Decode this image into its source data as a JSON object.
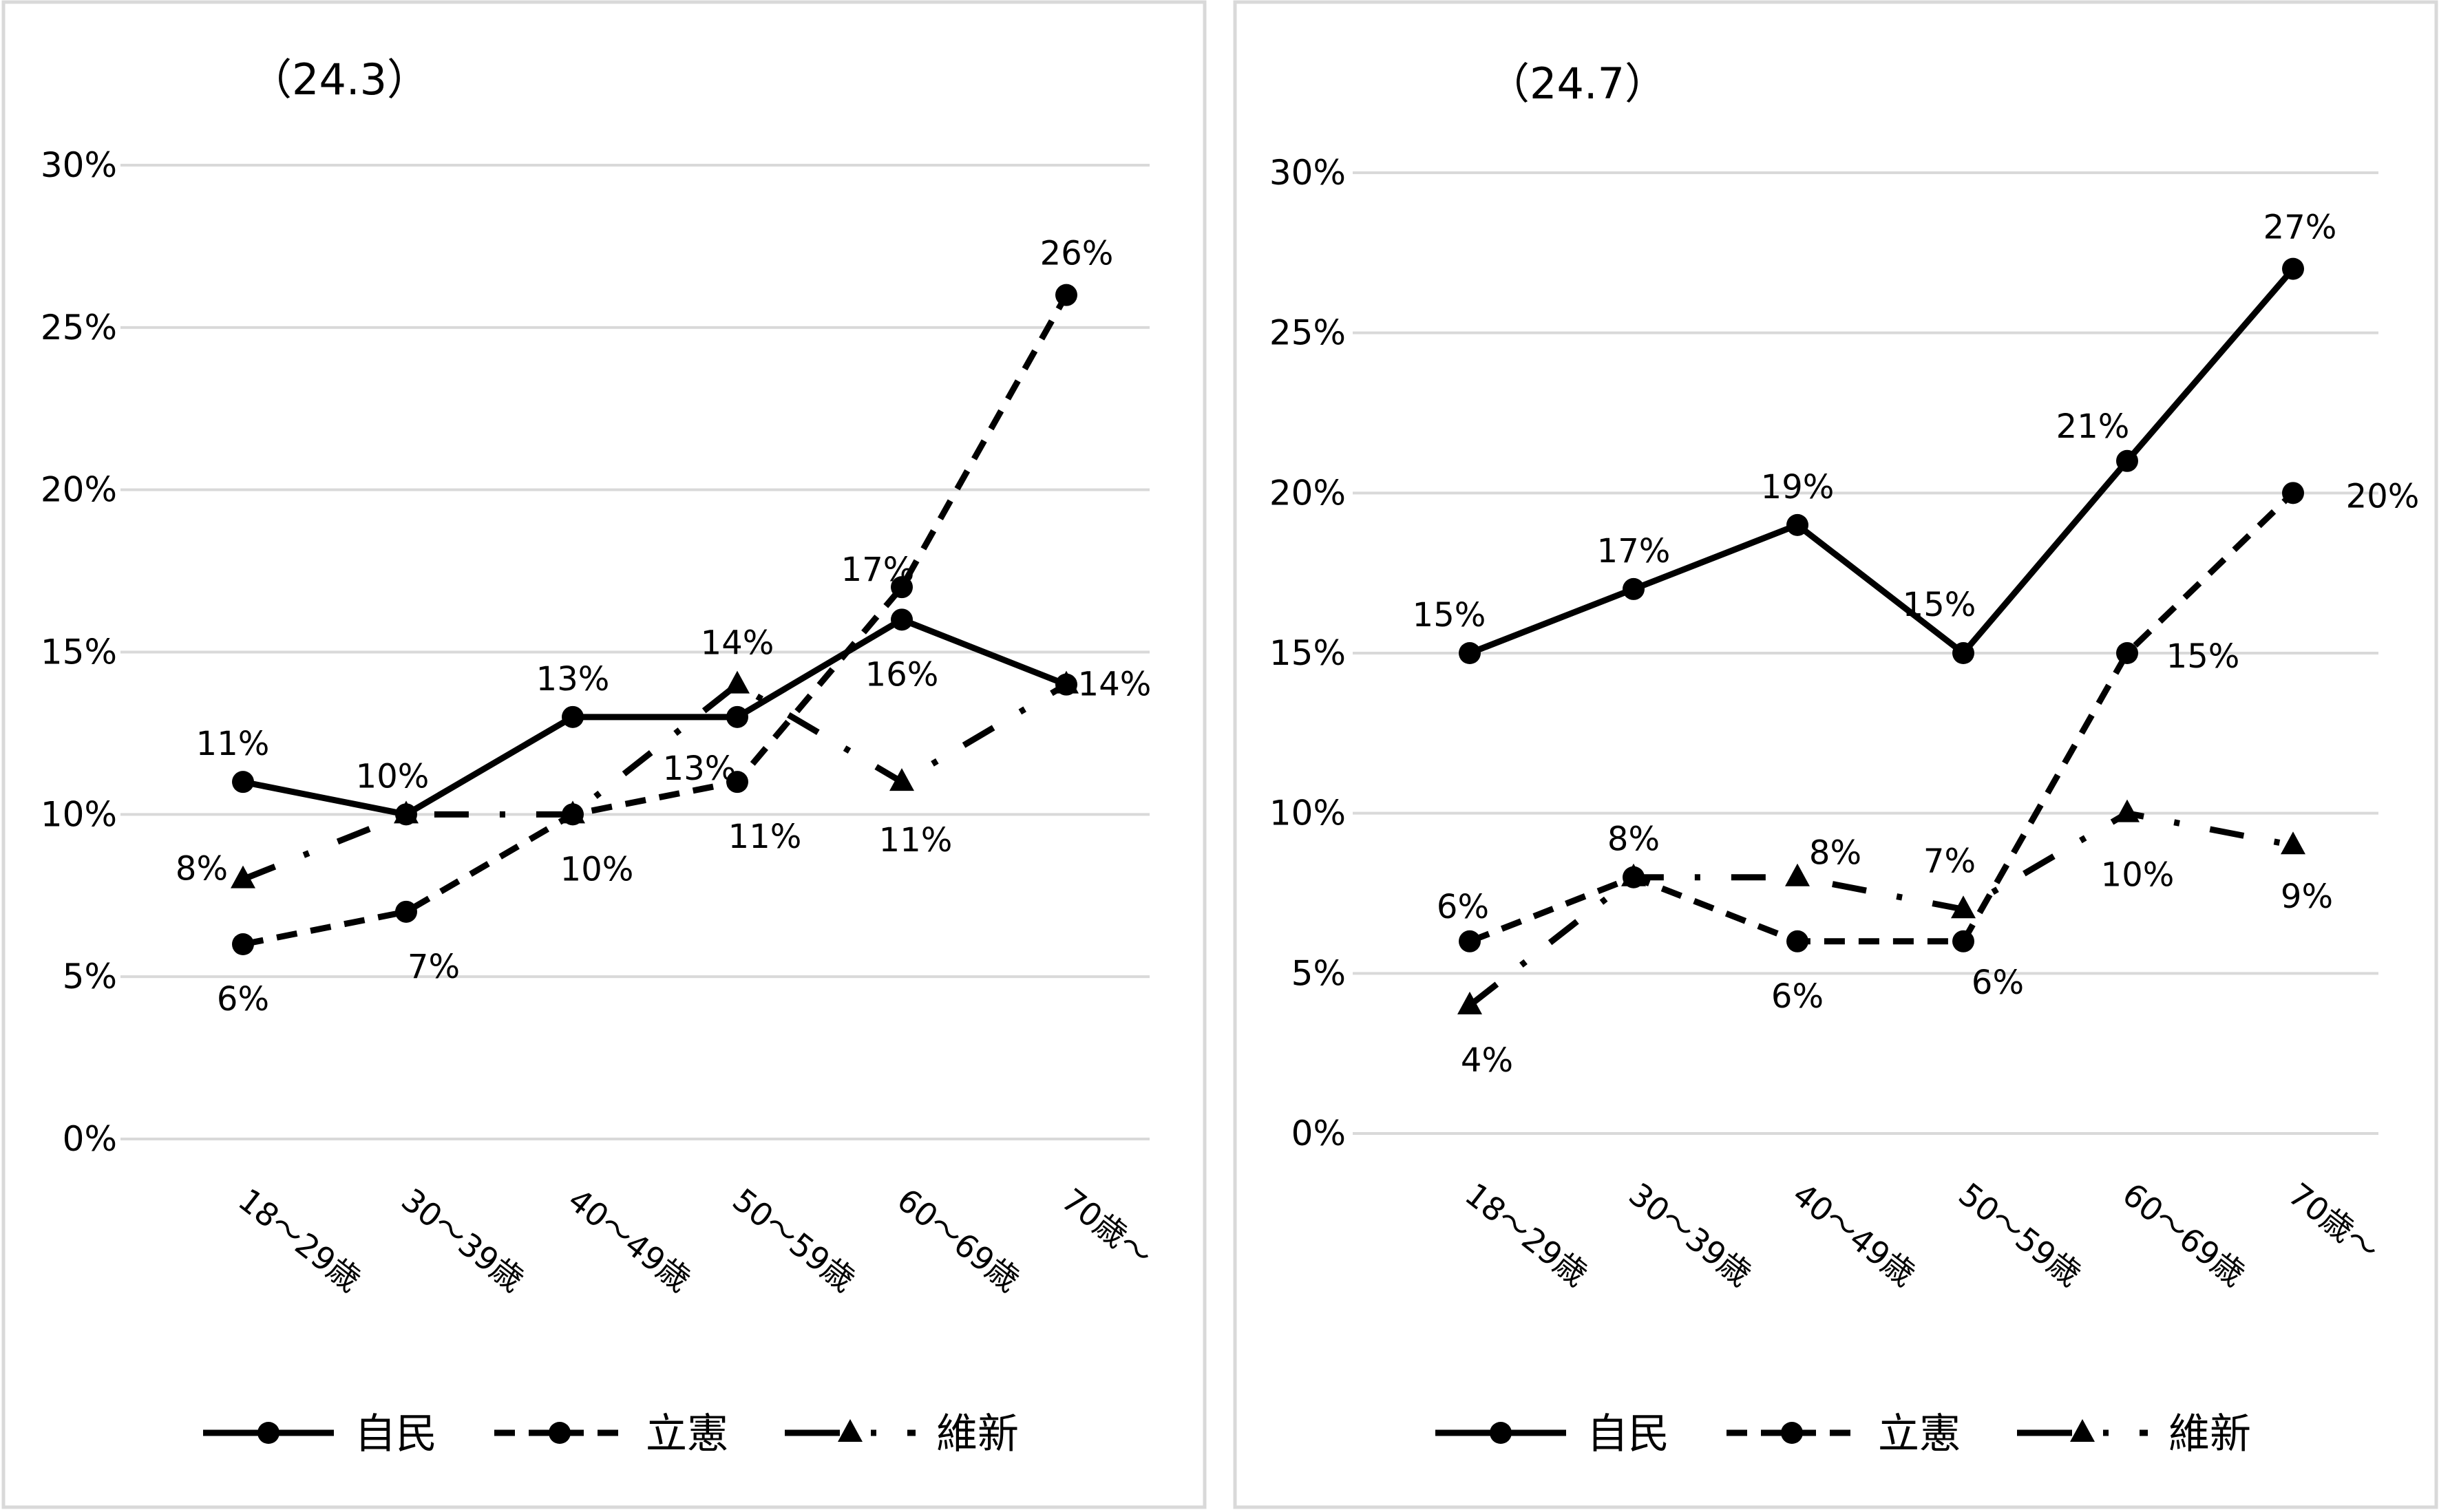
{
  "chart_data": [
    {
      "type": "line",
      "title": "（24.3）",
      "categories": [
        "18～29歳",
        "30～39歳",
        "40～49歳",
        "50～59歳",
        "60～69歳",
        "70歳～"
      ],
      "y_ticks": [
        "0%",
        "5%",
        "10%",
        "15%",
        "20%",
        "25%",
        "30%"
      ],
      "ylim": [
        0,
        30
      ],
      "grid": true,
      "legend_position": "bottom",
      "series": [
        {
          "name": "自民",
          "style": "solid",
          "marker": "circle",
          "values": [
            11,
            10,
            13,
            13,
            16,
            14
          ],
          "labels": [
            "11%",
            "10%",
            "13%",
            "13%",
            "16%",
            "14%"
          ]
        },
        {
          "name": "立憲",
          "style": "dashed",
          "marker": "circle",
          "values": [
            6,
            7,
            10,
            11,
            17,
            26
          ],
          "labels": [
            "6%",
            "7%",
            "10%",
            "11%",
            "17%",
            "26%"
          ]
        },
        {
          "name": "維新",
          "style": "dashdot",
          "marker": "triangle",
          "values": [
            8,
            10,
            10,
            14,
            11,
            14
          ],
          "labels": [
            "8%",
            "",
            "",
            "14%",
            "11%",
            ""
          ]
        }
      ]
    },
    {
      "type": "line",
      "title": "（24.7）",
      "categories": [
        "18～29歳",
        "30～39歳",
        "40～49歳",
        "50～59歳",
        "60～69歳",
        "70歳～"
      ],
      "y_ticks": [
        "0%",
        "5%",
        "10%",
        "15%",
        "20%",
        "25%",
        "30%"
      ],
      "ylim": [
        0,
        30
      ],
      "grid": true,
      "legend_position": "bottom",
      "series": [
        {
          "name": "自民",
          "style": "solid",
          "marker": "circle",
          "values": [
            15,
            17,
            19,
            15,
            21,
            27
          ],
          "labels": [
            "15%",
            "17%",
            "19%",
            "15%",
            "21%",
            "27%"
          ]
        },
        {
          "name": "立憲",
          "style": "dashed",
          "marker": "circle",
          "values": [
            6,
            8,
            6,
            6,
            15,
            20
          ],
          "labels": [
            "6%",
            "8%",
            "6%",
            "6%",
            "15%",
            "20%"
          ]
        },
        {
          "name": "維新",
          "style": "dashdot",
          "marker": "triangle",
          "values": [
            4,
            8,
            8,
            7,
            10,
            9
          ],
          "labels": [
            "4%",
            "",
            "8%",
            "7%",
            "10%",
            "9%"
          ]
        }
      ]
    }
  ]
}
